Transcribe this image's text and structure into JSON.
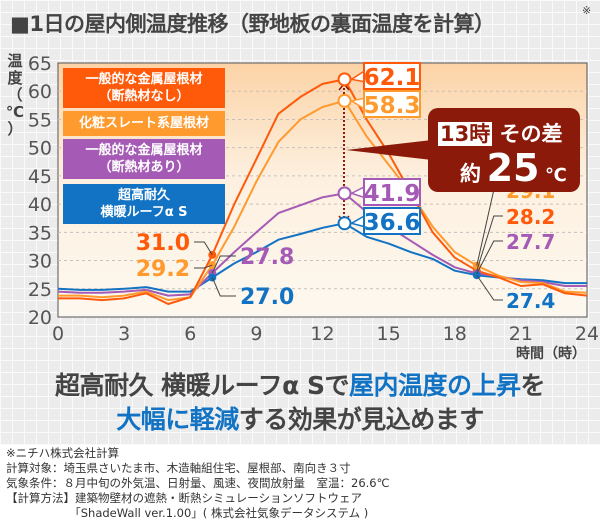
{
  "title": "■1日の屋内側温度推移（野地板の裏面温度を計算）",
  "title_note": "※",
  "colors": {
    "dark_orange": "#ff5a0a",
    "light_orange": "#ff9a2e",
    "purple": "#a55bb5",
    "blue": "#1273c4",
    "callout": "#8b1a0a"
  },
  "chart_data": {
    "type": "line",
    "ylabel": "温度（℃）",
    "xlabel": "時間（時）",
    "xlim": [
      0,
      24
    ],
    "ylim": [
      20,
      65
    ],
    "xticks": [
      0,
      3,
      6,
      9,
      12,
      15,
      18,
      21,
      24
    ],
    "yticks": [
      20,
      25,
      30,
      35,
      40,
      45,
      50,
      55,
      60,
      65
    ],
    "grid": "horizontal-dashed",
    "legend_placement": "top-left",
    "x": [
      0,
      1,
      2,
      3,
      4,
      5,
      6,
      7,
      8,
      9,
      10,
      11,
      12,
      13,
      14,
      15,
      16,
      17,
      18,
      19,
      20,
      21,
      22,
      23,
      24
    ],
    "series": [
      {
        "name": "一般的な金属屋根材（断熱材なし）",
        "color": "#ff5a0a",
        "values": [
          23.3,
          23.3,
          23,
          23.3,
          24.2,
          22.3,
          23.5,
          31.0,
          40,
          48,
          56,
          59,
          61.3,
          62.1,
          55,
          49,
          42,
          35,
          30.5,
          28.2,
          27,
          25.5,
          25.8,
          24.2,
          23.8
        ]
      },
      {
        "name": "化粧スレート系屋根材",
        "color": "#ff9a2e",
        "values": [
          23.8,
          23.8,
          23.5,
          23.8,
          24.5,
          23,
          23.5,
          29.2,
          36,
          44,
          51,
          55,
          57.2,
          58.3,
          52,
          47,
          42,
          36,
          31.5,
          29.1,
          27.3,
          26.2,
          26,
          24.5,
          24.3
        ]
      },
      {
        "name": "一般的な金属屋根材（断熱材あり）",
        "color": "#a55bb5",
        "values": [
          24.5,
          24.3,
          24.3,
          24.5,
          24.8,
          23.8,
          24,
          27.8,
          31.5,
          35,
          38.4,
          39.8,
          41.2,
          41.9,
          38.6,
          36,
          33.5,
          31,
          28.8,
          27.7,
          27.2,
          26.5,
          26.2,
          25.5,
          25.5
        ]
      },
      {
        "name": "超高耐久 横暖ルーフα S",
        "color": "#1273c4",
        "values": [
          25,
          24.8,
          24.8,
          25,
          25.3,
          24.5,
          24.5,
          27.0,
          29.5,
          31.5,
          33.7,
          34.7,
          35.8,
          36.6,
          34.2,
          33,
          31.5,
          30.3,
          28.2,
          27.4,
          27,
          26.7,
          26.5,
          26,
          26
        ]
      }
    ],
    "annotations": {
      "h7": [
        "31.0",
        "29.2",
        "27.8",
        "27.0"
      ],
      "h13": [
        "62.1",
        "58.3",
        "41.9",
        "36.6"
      ],
      "h19": [
        "29.1",
        "28.2",
        "27.7",
        "27.4"
      ]
    }
  },
  "legend": {
    "s0": [
      "一般的な金属屋根材",
      "（断熱材なし）"
    ],
    "s1": "化粧スレート系屋根材",
    "s2": [
      "一般的な金属屋根材",
      "（断熱材あり）"
    ],
    "s3": [
      "超高耐久",
      "横暖ルーフα S"
    ]
  },
  "axis_labels": {
    "y": [
      "温",
      "度",
      "（",
      "℃",
      "）"
    ],
    "x": "時間（時）"
  },
  "callout": {
    "time": "13時",
    "text1": "その差",
    "approx": "約",
    "value": "25",
    "unit": "℃"
  },
  "headline": {
    "l1a": "超高耐久 横暖ルーフα Sで",
    "l1b": "屋内温度の上昇",
    "l1c": "を",
    "l2a": "大幅に軽減",
    "l2b": "する効果が見込めます"
  },
  "footnote": [
    "※ニチハ株式会社計算",
    "計算対象：埼玉県さいたま市、木造軸組住宅、屋根部、南向き３寸",
    "気象条件：８月中旬の外気温、日射量、風速、夜間放射量　室温：26.6℃",
    "【計算方法】建築物壁材の遮熱・断熱シミュレーションソフトウェア",
    "　　　　　　「ShadeWall ver.1.00」( 株式会社気象データシステム )"
  ]
}
